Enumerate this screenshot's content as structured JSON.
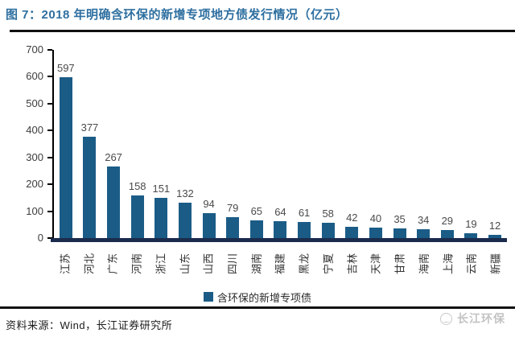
{
  "header": {
    "figure_title": "图 7：2018 年明确含环保的新增专项地方债发行情况（亿元）"
  },
  "chart_data": {
    "type": "bar",
    "title": "2018 年明确含环保的新增专项地方债发行情况（亿元）",
    "categories": [
      "江苏",
      "河北",
      "广东",
      "河南",
      "浙江",
      "山东",
      "山西",
      "四川",
      "湖南",
      "福建",
      "黑龙",
      "宁夏",
      "吉林",
      "天津",
      "甘肃",
      "海南",
      "上海",
      "云南",
      "新疆"
    ],
    "values": [
      597,
      377,
      267,
      158,
      151,
      132,
      94,
      79,
      65,
      64,
      61,
      58,
      42,
      40,
      35,
      34,
      29,
      19,
      12
    ],
    "xlabel": "",
    "ylabel": "",
    "ylim": [
      0,
      700
    ],
    "yticks": [
      0,
      100,
      200,
      300,
      400,
      500,
      600,
      700
    ],
    "grid": false,
    "legend_position": "bottom",
    "legend": [
      {
        "label": "含环保的新增专项债",
        "color": "#1b5c87"
      }
    ],
    "bar_color": "#1b5c87",
    "axis_color": "#1b2b4d",
    "title_color": "#2e6fa0"
  },
  "footer": {
    "source": "资料来源：Wind，长江证券研究所",
    "brand": "长江环保",
    "logo_icon": "sun-over-river-icon"
  }
}
